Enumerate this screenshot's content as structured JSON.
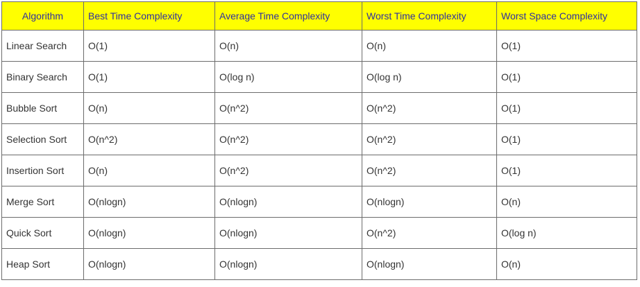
{
  "table": {
    "headers": [
      "Algorithm",
      "Best Time Complexity",
      "Average Time Complexity",
      "Worst Time Complexity",
      "Worst Space Complexity"
    ],
    "rows": [
      [
        "Linear Search",
        "O(1)",
        "O(n)",
        "O(n)",
        "O(1)"
      ],
      [
        "Binary Search",
        "O(1)",
        "O(log n)",
        "O(log n)",
        "O(1)"
      ],
      [
        "Bubble Sort",
        "O(n)",
        "O(n^2)",
        "O(n^2)",
        "O(1)"
      ],
      [
        "Selection Sort",
        "O(n^2)",
        "O(n^2)",
        "O(n^2)",
        "O(1)"
      ],
      [
        "Insertion Sort",
        "O(n)",
        "O(n^2)",
        "O(n^2)",
        "O(1)"
      ],
      [
        "Merge Sort",
        "O(nlogn)",
        "O(nlogn)",
        "O(nlogn)",
        "O(n)"
      ],
      [
        "Quick Sort",
        "O(nlogn)",
        "O(nlogn)",
        "O(n^2)",
        "O(log n)"
      ],
      [
        "Heap Sort",
        "O(nlogn)",
        "O(nlogn)",
        "O(nlogn)",
        "O(n)"
      ]
    ]
  },
  "colors": {
    "header_background": "#ffff00",
    "header_text": "#2f2fa0",
    "body_text": "#333333",
    "border": "#6b6b6b"
  }
}
